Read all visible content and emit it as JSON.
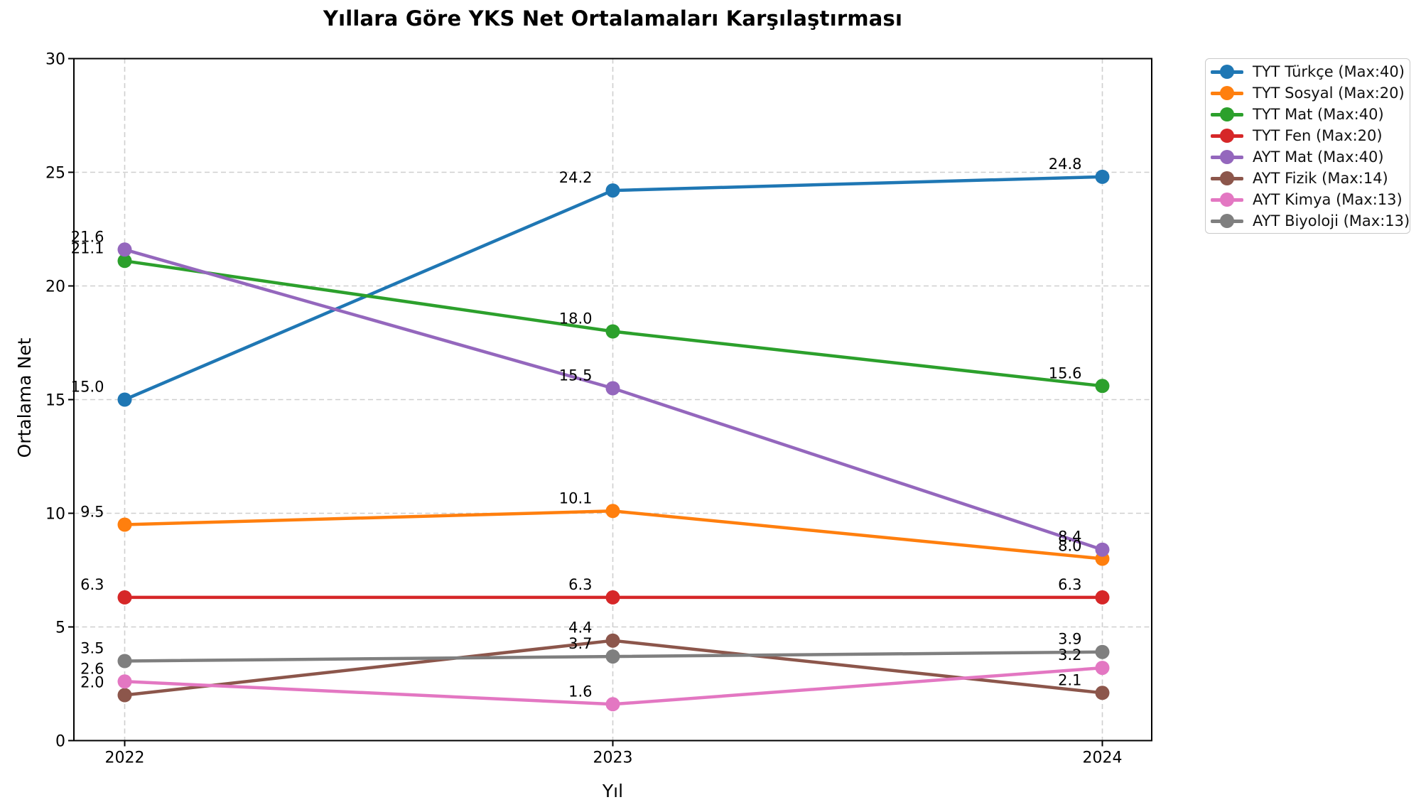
{
  "figure": {
    "background": "#ffffff"
  },
  "chart_data": {
    "type": "line",
    "title": "Yıllara Göre YKS Net Ortalamaları Karşılaştırması",
    "xlabel": "Yıl",
    "ylabel": "Ortalama Net",
    "categories": [
      "2022",
      "2023",
      "2024"
    ],
    "ylim": [
      0,
      30
    ],
    "yticks": [
      0,
      5,
      10,
      15,
      20,
      25,
      30
    ],
    "grid": true,
    "grid_style": "dashed",
    "grid_color": "#cfcfcf",
    "axis_color": "#000000",
    "legend_position": "outside-upper-right",
    "point_labels_shown": true,
    "series": [
      {
        "name": "TYT Türkçe (Max:40)",
        "color": "#1f77b4",
        "values": [
          15.0,
          24.2,
          24.8
        ]
      },
      {
        "name": "TYT Sosyal (Max:20)",
        "color": "#ff7f0e",
        "values": [
          9.5,
          10.1,
          8.0
        ]
      },
      {
        "name": "TYT Mat (Max:40)",
        "color": "#2ca02c",
        "values": [
          21.1,
          18.0,
          15.6
        ]
      },
      {
        "name": "TYT Fen (Max:20)",
        "color": "#d62728",
        "values": [
          6.3,
          6.3,
          6.3
        ]
      },
      {
        "name": "AYT Mat (Max:40)",
        "color": "#9467bd",
        "values": [
          21.6,
          15.5,
          8.4
        ]
      },
      {
        "name": "AYT Fizik (Max:14)",
        "color": "#8c564b",
        "values": [
          2.0,
          4.4,
          2.1
        ]
      },
      {
        "name": "AYT Kimya (Max:13)",
        "color": "#e377c2",
        "values": [
          2.6,
          1.6,
          3.2
        ]
      },
      {
        "name": "AYT Biyoloji (Max:13)",
        "color": "#7f7f7f",
        "values": [
          3.5,
          3.7,
          3.9
        ]
      }
    ]
  }
}
